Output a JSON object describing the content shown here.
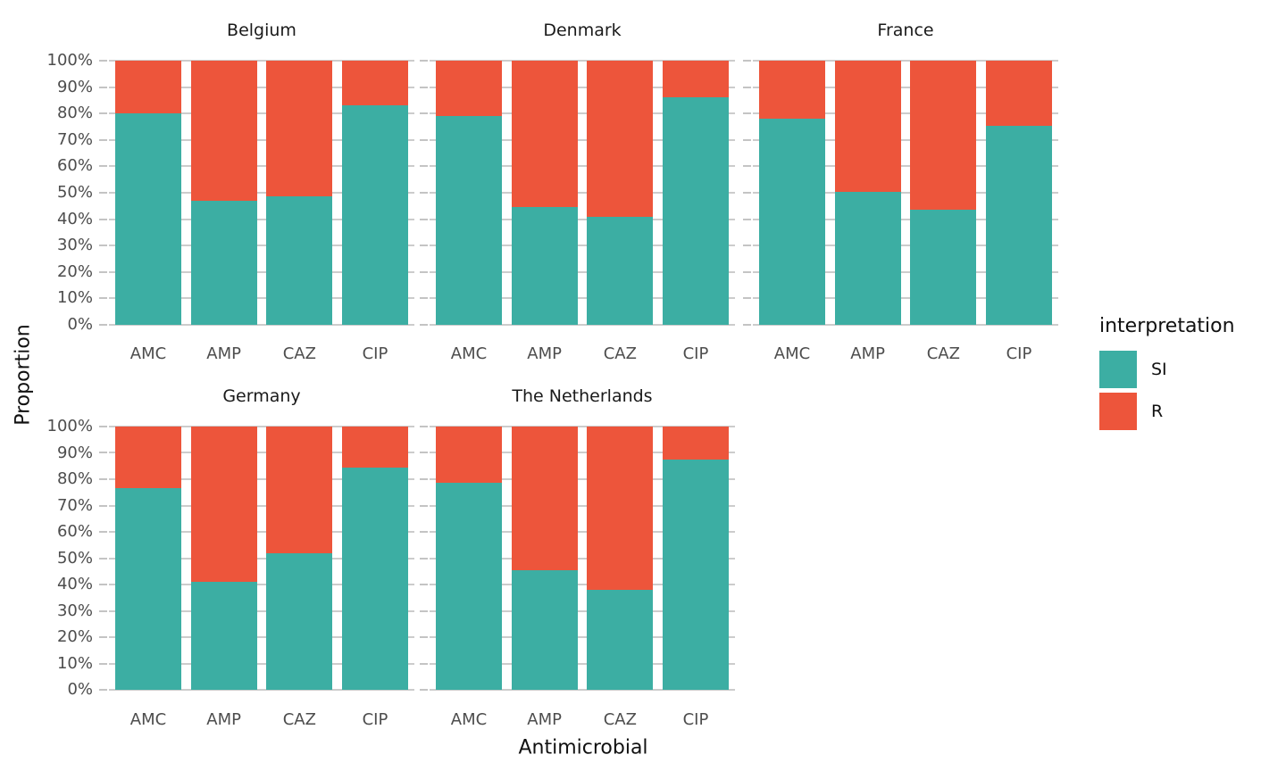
{
  "figure": {
    "ylabel": "Proportion",
    "xlabel": "Antimicrobial"
  },
  "colors": {
    "si": "#3CAEA3",
    "r": "#ED553B",
    "grid": "#cccccc",
    "tick_mark": "#c4c4c4",
    "axis_text": "#4d4d4d",
    "title_text": "#1a1a1a"
  },
  "chart_data": {
    "type": "bar",
    "stacked": true,
    "normalized": "percent",
    "grid": true,
    "xlabel": "Antimicrobial",
    "ylabel": "Proportion",
    "categories": [
      "AMC",
      "AMP",
      "CAZ",
      "CIP"
    ],
    "y_axis": {
      "range": [
        0,
        100
      ],
      "ticks": [
        "0%",
        "10%",
        "20%",
        "30%",
        "40%",
        "50%",
        "60%",
        "70%",
        "80%",
        "90%",
        "100%"
      ]
    },
    "legend": {
      "title": "interpretation",
      "position": "right",
      "items": [
        {
          "label": "SI",
          "color": "#3CAEA3"
        },
        {
          "label": "R",
          "color": "#ED553B"
        }
      ]
    },
    "facets": [
      {
        "title": "Belgium",
        "series": [
          {
            "name": "SI",
            "values": [
              80,
              47,
              48.5,
              83
            ]
          },
          {
            "name": "R",
            "values": [
              20,
              53,
              51.5,
              17
            ]
          }
        ]
      },
      {
        "title": "Denmark",
        "series": [
          {
            "name": "SI",
            "values": [
              79,
              44.5,
              41,
              86
            ]
          },
          {
            "name": "R",
            "values": [
              21,
              55.5,
              59,
              14
            ]
          }
        ]
      },
      {
        "title": "France",
        "series": [
          {
            "name": "SI",
            "values": [
              78,
              50.5,
              43.5,
              75.5
            ]
          },
          {
            "name": "R",
            "values": [
              22,
              49.5,
              56.5,
              24.5
            ]
          }
        ]
      },
      {
        "title": "Germany",
        "series": [
          {
            "name": "SI",
            "values": [
              76.5,
              41,
              52,
              84.5
            ]
          },
          {
            "name": "R",
            "values": [
              23.5,
              59,
              48,
              15.5
            ]
          }
        ]
      },
      {
        "title": "The Netherlands",
        "series": [
          {
            "name": "SI",
            "values": [
              78.5,
              45.5,
              38,
              87.5
            ]
          },
          {
            "name": "R",
            "values": [
              21.5,
              54.5,
              62,
              12.5
            ]
          }
        ]
      }
    ]
  }
}
